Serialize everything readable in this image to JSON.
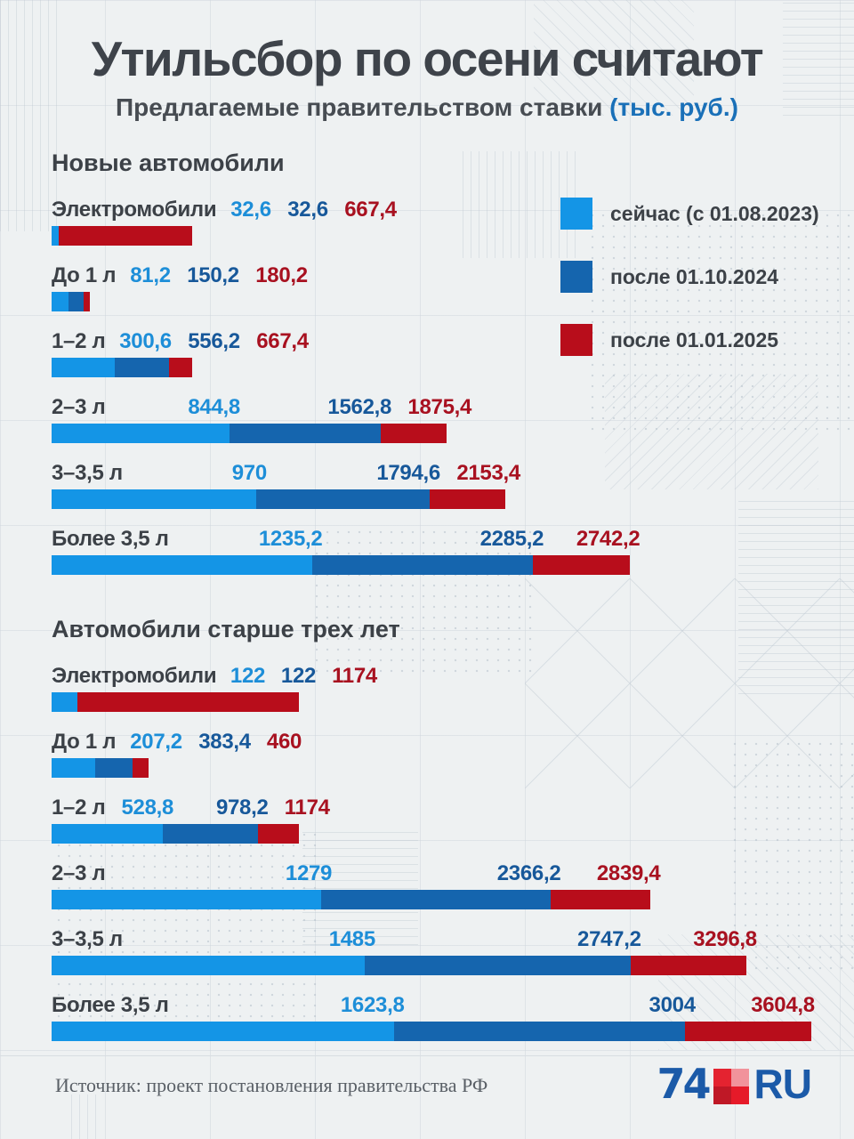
{
  "title": "Утильсбор по осени считают",
  "subtitle": {
    "text": "Предлагаемые правительством ставки",
    "accent": "(тыс. руб.)",
    "accent_color": "#1a70b8"
  },
  "legend": {
    "items": [
      {
        "label": "сейчас (с 01.08.2023)",
        "color": "#1495e6"
      },
      {
        "label": "после 01.10.2024",
        "color": "#1565ae"
      },
      {
        "label": "после 01.01.2025",
        "color": "#b80d1b"
      }
    ]
  },
  "value_text_colors": [
    "#1d8ed8",
    "#17589a",
    "#a81120"
  ],
  "axis": {
    "max": 3604.8
  },
  "chart_data": [
    {
      "type": "bar",
      "orientation": "horizontal",
      "title": "Новые автомобили",
      "unit": "тыс. руб.",
      "xlim": [
        0,
        3604.8
      ],
      "legend_position": "top-right",
      "series_names": [
        "сейчас (с 01.08.2023)",
        "после 01.10.2024",
        "после 01.01.2025"
      ],
      "categories": [
        "Электромобили",
        "До 1 л",
        "1–2 л",
        "2–3 л",
        "3–3,5 л",
        "Более 3,5 л"
      ],
      "rows": [
        {
          "label": "Электромобили",
          "values": [
            32.6,
            32.6,
            667.4
          ],
          "labels": [
            "32,6",
            "32,6",
            "667,4"
          ]
        },
        {
          "label": "До 1 л",
          "values": [
            81.2,
            150.2,
            180.2
          ],
          "labels": [
            "81,2",
            "150,2",
            "180,2"
          ]
        },
        {
          "label": "1–2 л",
          "values": [
            300.6,
            556.2,
            667.4
          ],
          "labels": [
            "300,6",
            "556,2",
            "667,4"
          ]
        },
        {
          "label": "2–3 л",
          "values": [
            844.8,
            1562.8,
            1875.4
          ],
          "labels": [
            "844,8",
            "1562,8",
            "1875,4"
          ]
        },
        {
          "label": "3–3,5 л",
          "values": [
            970,
            1794.6,
            2153.4
          ],
          "labels": [
            "970",
            "1794,6",
            "2153,4"
          ]
        },
        {
          "label": "Более 3,5 л",
          "values": [
            1235.2,
            2285.2,
            2742.2
          ],
          "labels": [
            "1235,2",
            "2285,2",
            "2742,2"
          ]
        }
      ]
    },
    {
      "type": "bar",
      "orientation": "horizontal",
      "title": "Автомобили старше трех лет",
      "unit": "тыс. руб.",
      "xlim": [
        0,
        3604.8
      ],
      "series_names": [
        "сейчас (с 01.08.2023)",
        "после 01.10.2024",
        "после 01.01.2025"
      ],
      "categories": [
        "Электромобили",
        "До 1 л",
        "1–2 л",
        "2–3 л",
        "3–3,5 л",
        "Более 3,5 л"
      ],
      "rows": [
        {
          "label": "Электромобили",
          "values": [
            122,
            122,
            1174
          ],
          "labels": [
            "122",
            "122",
            "1174"
          ]
        },
        {
          "label": "До 1 л",
          "values": [
            207.2,
            383.4,
            460
          ],
          "labels": [
            "207,2",
            "383,4",
            "460"
          ]
        },
        {
          "label": "1–2 л",
          "values": [
            528.8,
            978.2,
            1174
          ],
          "labels": [
            "528,8",
            "978,2",
            "1174"
          ]
        },
        {
          "label": "2–3 л",
          "values": [
            1279,
            2366.2,
            2839.4
          ],
          "labels": [
            "1279",
            "2366,2",
            "2839,4"
          ]
        },
        {
          "label": "3–3,5 л",
          "values": [
            1485,
            2747.2,
            3296.8
          ],
          "labels": [
            "1485",
            "2747,2",
            "3296,8"
          ]
        },
        {
          "label": "Более 3,5 л",
          "values": [
            1623.8,
            3004,
            3604.8
          ],
          "labels": [
            "1623,8",
            "3004",
            "3604,8"
          ]
        }
      ]
    }
  ],
  "footer": {
    "source": "Источник: проект постановления правительства РФ",
    "logo": {
      "prefix": "74",
      "suffix": "RU",
      "text_color": "#1b5aa8",
      "square_colors": [
        "#e42330",
        "#f1939b",
        "#bf1826",
        "#e61a29"
      ]
    }
  }
}
